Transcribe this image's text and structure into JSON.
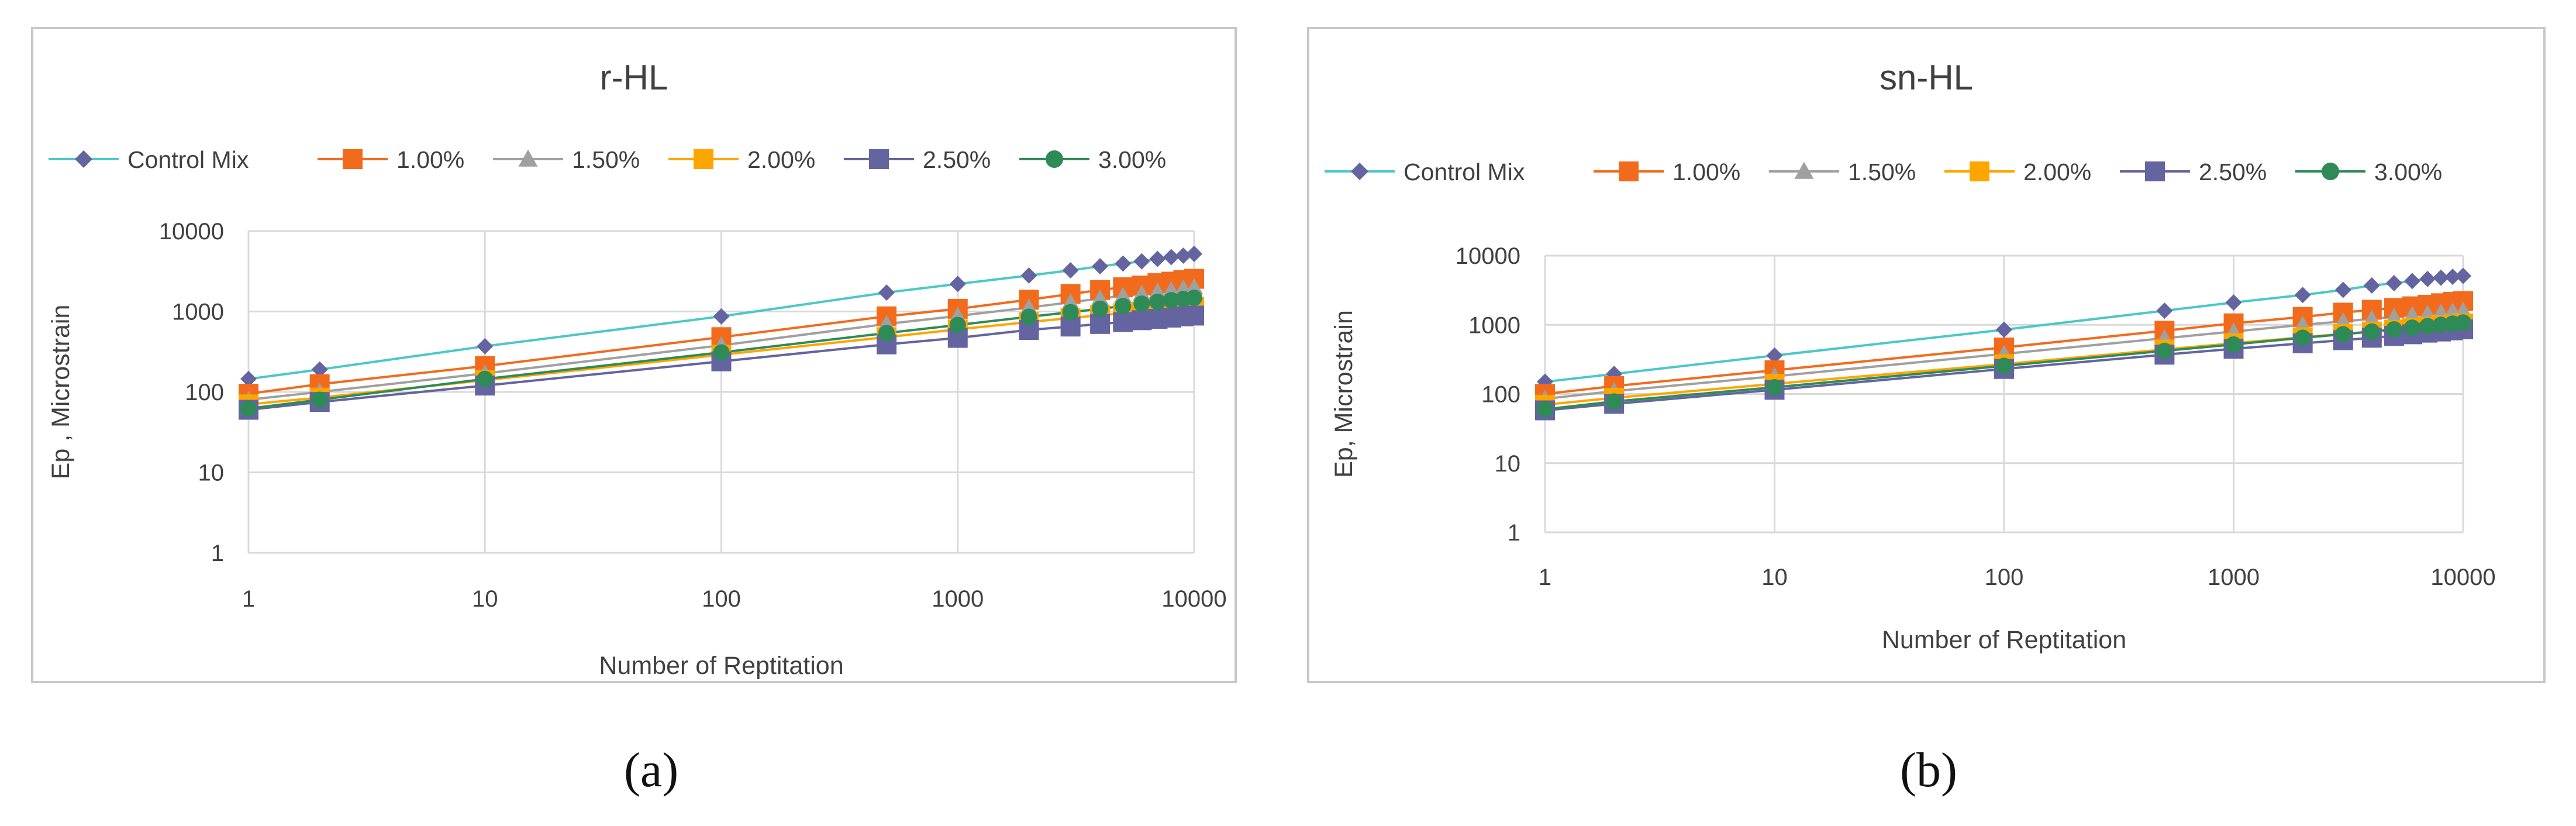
{
  "chart_data": [
    {
      "type": "line",
      "title": "r-HL",
      "xlabel": "Number of Reptitation",
      "ylabel": "Ep , Microstrain",
      "x_scale": "log",
      "y_scale": "log",
      "xlim": [
        1,
        10000
      ],
      "ylim": [
        1,
        10000
      ],
      "x_ticks": [
        "1",
        "10",
        "100",
        "1000",
        "10000"
      ],
      "y_ticks": [
        "1",
        "10",
        "100",
        "1000",
        "10000"
      ],
      "grid": true,
      "legend_position": "top",
      "x": [
        1,
        2,
        10,
        100,
        500,
        1000,
        2000,
        3000,
        4000,
        5000,
        6000,
        7000,
        8000,
        9000,
        10000
      ],
      "series": [
        {
          "name": "Control Mix",
          "color": "#4BC8C8",
          "marker_color": "#6464A0",
          "marker": "diamond",
          "values": [
            145,
            190,
            370,
            870,
            1720,
            2200,
            2800,
            3250,
            3650,
            3950,
            4200,
            4500,
            4750,
            4950,
            5200
          ]
        },
        {
          "name": "1.00%",
          "color": "#F26B1D",
          "marker_color": "#F26B1D",
          "marker": "square",
          "values": [
            95,
            125,
            210,
            480,
            870,
            1080,
            1400,
            1650,
            1850,
            2000,
            2100,
            2250,
            2350,
            2450,
            2550
          ]
        },
        {
          "name": "1.50%",
          "color": "#A0A0A0",
          "marker_color": "#A0A0A0",
          "marker": "triangle",
          "values": [
            80,
            100,
            170,
            380,
            700,
            880,
            1120,
            1300,
            1450,
            1560,
            1660,
            1760,
            1840,
            1920,
            2000
          ]
        },
        {
          "name": "2.00%",
          "color": "#FFA500",
          "marker_color": "#FFA500",
          "marker": "square",
          "values": [
            70,
            85,
            140,
            290,
            480,
            600,
            740,
            830,
            900,
            950,
            1000,
            1040,
            1080,
            1110,
            1140
          ]
        },
        {
          "name": "2.50%",
          "color": "#6464A0",
          "marker_color": "#6464A0",
          "marker": "square",
          "values": [
            60,
            75,
            120,
            240,
            390,
            470,
            590,
            650,
            700,
            740,
            780,
            810,
            840,
            870,
            890
          ]
        },
        {
          "name": "3.00%",
          "color": "#2E8B57",
          "marker_color": "#2E8B57",
          "marker": "circle",
          "values": [
            62,
            80,
            145,
            310,
            540,
            680,
            860,
            980,
            1080,
            1170,
            1250,
            1320,
            1380,
            1430,
            1480
          ]
        }
      ]
    },
    {
      "type": "line",
      "title": "sn-HL",
      "xlabel": "Number of Reptitation",
      "ylabel": "Ep, Microstrain",
      "x_scale": "log",
      "y_scale": "log",
      "xlim": [
        1,
        10000
      ],
      "ylim": [
        1,
        10000
      ],
      "x_ticks": [
        "1",
        "10",
        "100",
        "1000",
        "10000"
      ],
      "y_ticks": [
        "1",
        "10",
        "100",
        "1000",
        "10000"
      ],
      "grid": true,
      "legend_position": "top",
      "x": [
        1,
        2,
        10,
        100,
        500,
        1000,
        2000,
        3000,
        4000,
        5000,
        6000,
        7000,
        8000,
        9000,
        10000
      ],
      "series": [
        {
          "name": "Control Mix",
          "color": "#4BC8C8",
          "marker_color": "#6464A0",
          "marker": "diamond",
          "values": [
            150,
            195,
            360,
            850,
            1600,
            2100,
            2700,
            3200,
            3700,
            4000,
            4300,
            4600,
            4800,
            4950,
            5100
          ]
        },
        {
          "name": "1.00%",
          "color": "#F26B1D",
          "marker_color": "#F26B1D",
          "marker": "square",
          "values": [
            100,
            130,
            220,
            470,
            820,
            1050,
            1300,
            1500,
            1650,
            1750,
            1850,
            1950,
            2050,
            2150,
            2200
          ]
        },
        {
          "name": "1.50%",
          "color": "#A0A0A0",
          "marker_color": "#A0A0A0",
          "marker": "triangle",
          "values": [
            85,
            110,
            180,
            380,
            640,
            800,
            1000,
            1120,
            1220,
            1300,
            1380,
            1440,
            1500,
            1560,
            1600
          ]
        },
        {
          "name": "2.00%",
          "color": "#FFA500",
          "marker_color": "#FFA500",
          "marker": "square",
          "values": [
            70,
            88,
            140,
            270,
            440,
            540,
            660,
            740,
            800,
            850,
            900,
            940,
            980,
            1010,
            1050
          ]
        },
        {
          "name": "2.50%",
          "color": "#6464A0",
          "marker_color": "#6464A0",
          "marker": "square",
          "values": [
            58,
            72,
            115,
            230,
            370,
            450,
            540,
            600,
            650,
            690,
            730,
            770,
            800,
            830,
            860
          ]
        },
        {
          "name": "3.00%",
          "color": "#2E8B57",
          "marker_color": "#2E8B57",
          "marker": "circle",
          "values": [
            60,
            78,
            125,
            255,
            420,
            520,
            650,
            730,
            800,
            860,
            910,
            960,
            1000,
            1040,
            1080
          ]
        }
      ]
    }
  ],
  "captions": [
    "(a)",
    "(b)"
  ]
}
